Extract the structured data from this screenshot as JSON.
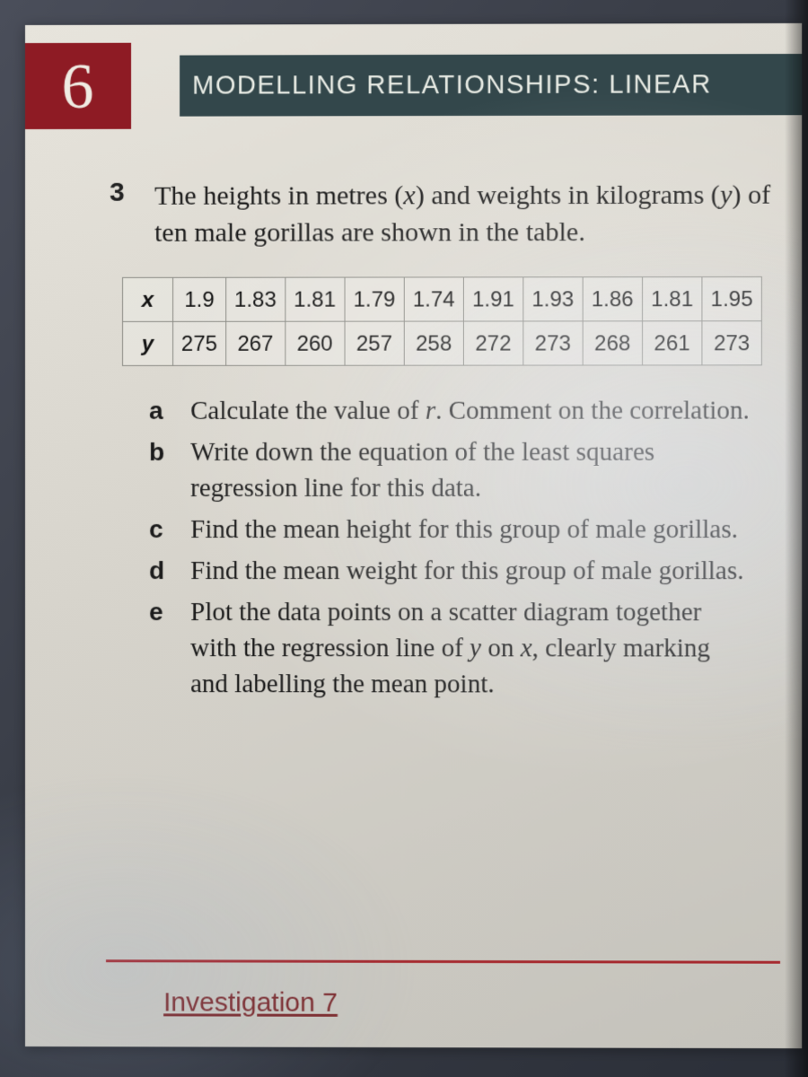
{
  "chapter": {
    "number": "6",
    "title": "MODELLING RELATIONSHIPS: LINEAR",
    "badge_bg": "#8e1b24",
    "badge_fg": "#f0ece3",
    "title_bg": "#33474b",
    "title_fg": "#e9ece5"
  },
  "problem": {
    "number": "3",
    "text_pre": "The heights in metres (",
    "var_x": "x",
    "text_mid1": ") and weights in kilograms (",
    "var_y": "y",
    "text_post": ") of ten male gorillas are shown in the table."
  },
  "table": {
    "type": "table",
    "row_labels": [
      "x",
      "y"
    ],
    "columns": 10,
    "rows": {
      "x": [
        "1.9",
        "1.83",
        "1.81",
        "1.79",
        "1.74",
        "1.91",
        "1.93",
        "1.86",
        "1.81",
        "1.95"
      ],
      "y": [
        "275",
        "267",
        "260",
        "257",
        "258",
        "272",
        "273",
        "268",
        "261",
        "273"
      ]
    },
    "border_color": "#8a8a84",
    "cell_fontsize": 24
  },
  "subparts": [
    {
      "label": "a",
      "pre": "Calculate the value of ",
      "var": "r",
      "post": ". Comment on the correlation."
    },
    {
      "label": "b",
      "pre": "Write down the equation of the least squares regression line for this data.",
      "var": "",
      "post": ""
    },
    {
      "label": "c",
      "pre": "Find the mean height for this group of male gorillas.",
      "var": "",
      "post": ""
    },
    {
      "label": "d",
      "pre": "Find the mean weight for this group of male gorillas.",
      "var": "",
      "post": ""
    },
    {
      "label": "e",
      "pre": "Plot the data points on a scatter diagram together with the regression line of ",
      "var": "y",
      "mid": " on ",
      "var2": "x",
      "post": ", clearly marking and labelling the mean point."
    }
  ],
  "footer": {
    "rule_color": "#a62a2f",
    "link_text": "Investigation 7",
    "link_color": "#7d2a2c"
  }
}
